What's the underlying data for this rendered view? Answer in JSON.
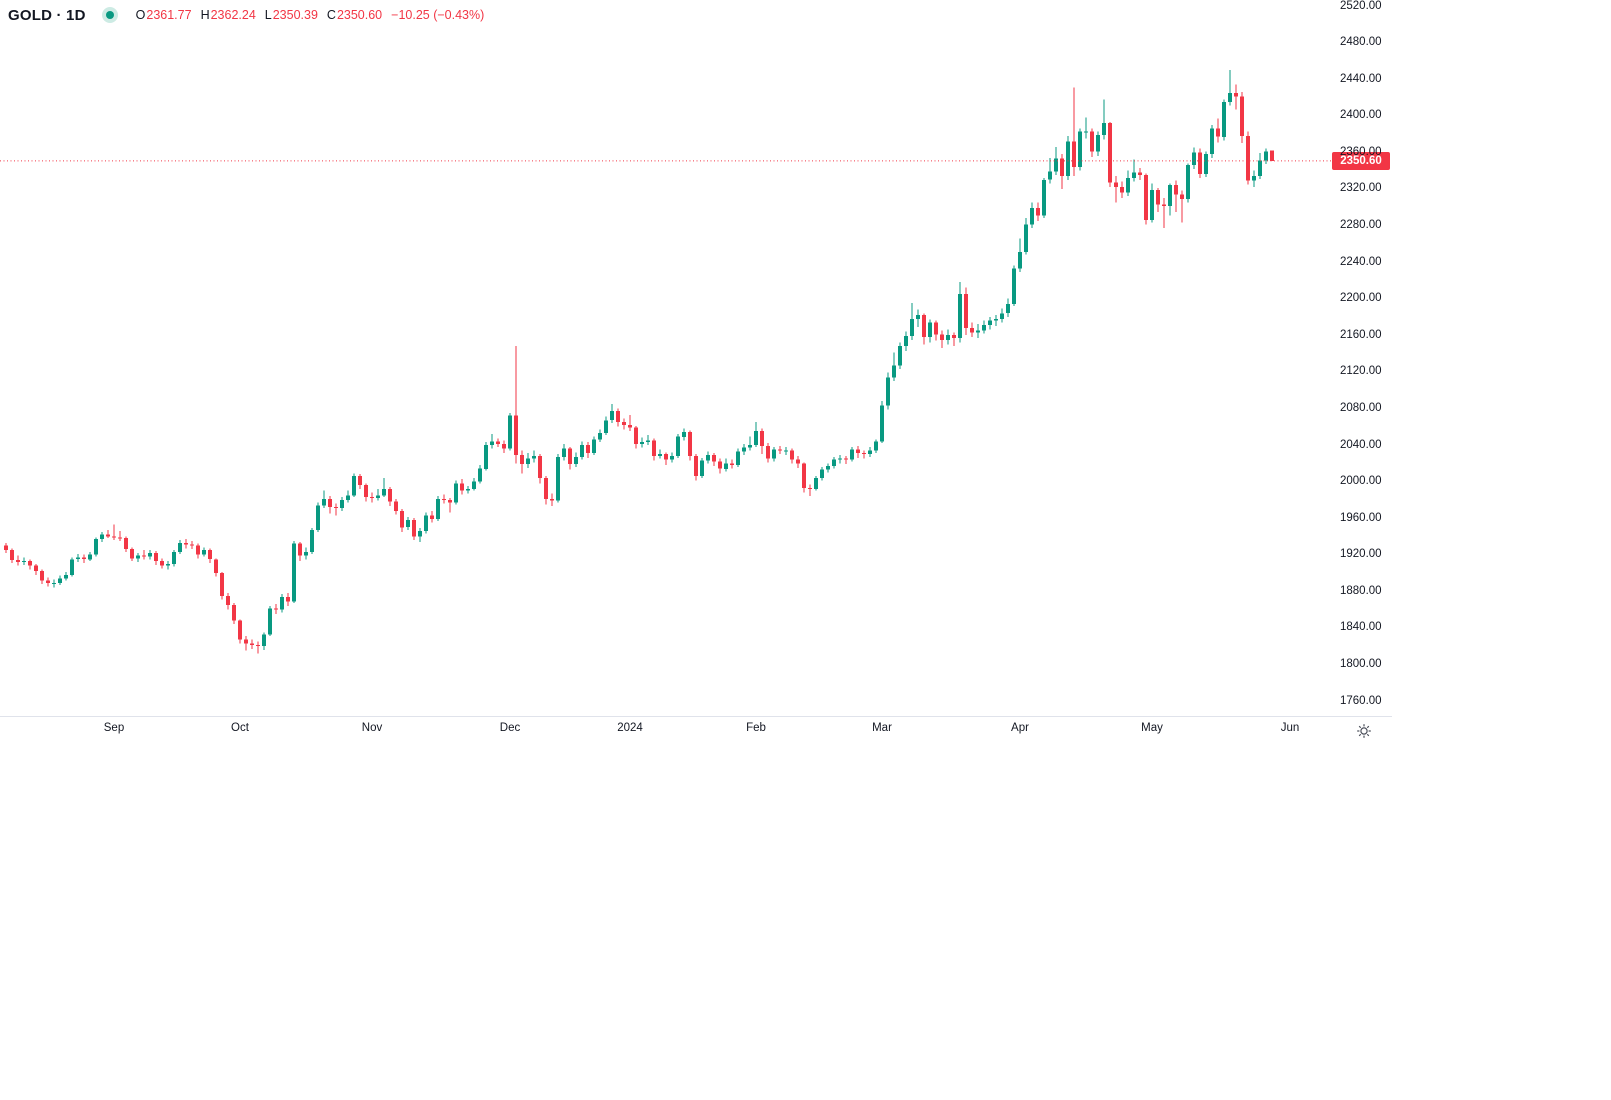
{
  "header": {
    "symbol_title": "GOLD · 1D",
    "status_dot": "market-status-green",
    "ohlc": {
      "open_label": "O",
      "open": "2361.77",
      "high_label": "H",
      "high": "2362.24",
      "low_label": "L",
      "low": "2350.39",
      "close_label": "C",
      "close": "2350.60",
      "change": "−10.25 (−0.43%)"
    }
  },
  "colors": {
    "up": "#089981",
    "down": "#f23645",
    "text": "#131722",
    "axis_text": "#131722",
    "border": "#e0e3eb",
    "last_price": "#f23645",
    "status_dot": "#089981",
    "status_dot_halo": "#cdebe4",
    "icon": "#4a4e59"
  },
  "chart_data": {
    "type": "candlestick",
    "symbol": "GOLD",
    "interval": "1D",
    "legend": "GOLD · 1D",
    "grid": "off",
    "legend_position": "top-left",
    "ylim": [
      1744,
      2527
    ],
    "price_axis_labels": [
      "2520.00",
      "2480.00",
      "2440.00",
      "2400.00",
      "2360.00",
      "2320.00",
      "2280.00",
      "2240.00",
      "2200.00",
      "2160.00",
      "2120.00",
      "2080.00",
      "2040.00",
      "2000.00",
      "1960.00",
      "1920.00",
      "1880.00",
      "1840.00",
      "1800.00",
      "1760.00"
    ],
    "price_tick_values": [
      2520,
      2480,
      2440,
      2400,
      2360,
      2320,
      2280,
      2240,
      2200,
      2160,
      2120,
      2080,
      2040,
      2000,
      1960,
      1920,
      1880,
      1840,
      1800,
      1760
    ],
    "last_price": 2350.6,
    "last_price_label": "2350.60",
    "time_axis_ticks": [
      {
        "label": "Sep",
        "index": 18
      },
      {
        "label": "Oct",
        "index": 39
      },
      {
        "label": "Nov",
        "index": 61
      },
      {
        "label": "Dec",
        "index": 84
      },
      {
        "label": "2024",
        "index": 104
      },
      {
        "label": "Feb",
        "index": 125
      },
      {
        "label": "Mar",
        "index": 146
      },
      {
        "label": "Apr",
        "index": 169
      },
      {
        "label": "May",
        "index": 191
      },
      {
        "label": "Jun",
        "index": 214
      }
    ],
    "candles_format": [
      "open",
      "high",
      "low",
      "close"
    ],
    "candles": [
      [
        1930,
        1933,
        1922,
        1925
      ],
      [
        1925,
        1927,
        1911,
        1914
      ],
      [
        1914,
        1919,
        1908,
        1912
      ],
      [
        1912,
        1917,
        1909,
        1913
      ],
      [
        1913,
        1915,
        1904,
        1908
      ],
      [
        1908,
        1910,
        1898,
        1902
      ],
      [
        1902,
        1904,
        1888,
        1892
      ],
      [
        1892,
        1895,
        1885,
        1889
      ],
      [
        1889,
        1893,
        1884,
        1889
      ],
      [
        1889,
        1897,
        1887,
        1894
      ],
      [
        1894,
        1901,
        1892,
        1898
      ],
      [
        1898,
        1917,
        1896,
        1915
      ],
      [
        1915,
        1921,
        1912,
        1917
      ],
      [
        1917,
        1920,
        1911,
        1915
      ],
      [
        1915,
        1923,
        1913,
        1920
      ],
      [
        1920,
        1939,
        1918,
        1937
      ],
      [
        1937,
        1945,
        1934,
        1942
      ],
      [
        1942,
        1947,
        1938,
        1940
      ],
      [
        1940,
        1953,
        1936,
        1939
      ],
      [
        1939,
        1946,
        1935,
        1938
      ],
      [
        1938,
        1940,
        1923,
        1926
      ],
      [
        1926,
        1928,
        1913,
        1916
      ],
      [
        1916,
        1922,
        1912,
        1919
      ],
      [
        1919,
        1925,
        1915,
        1918
      ],
      [
        1918,
        1925,
        1915,
        1922
      ],
      [
        1922,
        1924,
        1909,
        1913
      ],
      [
        1913,
        1916,
        1905,
        1908
      ],
      [
        1908,
        1913,
        1904,
        1910
      ],
      [
        1910,
        1925,
        1907,
        1923
      ],
      [
        1923,
        1936,
        1921,
        1933
      ],
      [
        1933,
        1937,
        1927,
        1931
      ],
      [
        1931,
        1935,
        1926,
        1930
      ],
      [
        1930,
        1932,
        1916,
        1920
      ],
      [
        1920,
        1928,
        1918,
        1925
      ],
      [
        1925,
        1927,
        1911,
        1915
      ],
      [
        1915,
        1916,
        1896,
        1900
      ],
      [
        1900,
        1901,
        1871,
        1875
      ],
      [
        1875,
        1878,
        1860,
        1865
      ],
      [
        1865,
        1867,
        1844,
        1848
      ],
      [
        1848,
        1849,
        1823,
        1827
      ],
      [
        1827,
        1831,
        1815,
        1823
      ],
      [
        1823,
        1827,
        1817,
        1821
      ],
      [
        1821,
        1825,
        1812,
        1820
      ],
      [
        1820,
        1835,
        1816,
        1833
      ],
      [
        1833,
        1864,
        1831,
        1861
      ],
      [
        1861,
        1866,
        1855,
        1860
      ],
      [
        1860,
        1877,
        1857,
        1874
      ],
      [
        1874,
        1878,
        1864,
        1869
      ],
      [
        1869,
        1935,
        1867,
        1932
      ],
      [
        1932,
        1934,
        1913,
        1919
      ],
      [
        1919,
        1928,
        1915,
        1923
      ],
      [
        1923,
        1949,
        1921,
        1947
      ],
      [
        1947,
        1977,
        1945,
        1974
      ],
      [
        1974,
        1990,
        1971,
        1981
      ],
      [
        1981,
        1984,
        1965,
        1972
      ],
      [
        1972,
        1976,
        1963,
        1971
      ],
      [
        1971,
        1983,
        1968,
        1980
      ],
      [
        1980,
        1990,
        1977,
        1985
      ],
      [
        1985,
        2009,
        1983,
        2006
      ],
      [
        2006,
        2008,
        1992,
        1996
      ],
      [
        1996,
        1998,
        1978,
        1983
      ],
      [
        1983,
        1988,
        1977,
        1982
      ],
      [
        1982,
        1992,
        1979,
        1985
      ],
      [
        1985,
        2004,
        1983,
        1992
      ],
      [
        1992,
        1994,
        1973,
        1978
      ],
      [
        1978,
        1981,
        1964,
        1968
      ],
      [
        1968,
        1970,
        1945,
        1950
      ],
      [
        1950,
        1961,
        1947,
        1958
      ],
      [
        1958,
        1960,
        1936,
        1940
      ],
      [
        1940,
        1949,
        1934,
        1946
      ],
      [
        1946,
        1966,
        1943,
        1963
      ],
      [
        1963,
        1968,
        1955,
        1959
      ],
      [
        1959,
        1984,
        1957,
        1981
      ],
      [
        1981,
        1986,
        1976,
        1980
      ],
      [
        1980,
        1982,
        1966,
        1977
      ],
      [
        1977,
        2001,
        1975,
        1998
      ],
      [
        1998,
        2003,
        1986,
        1990
      ],
      [
        1990,
        1995,
        1987,
        1992
      ],
      [
        1992,
        2004,
        1990,
        2000
      ],
      [
        2000,
        2018,
        1998,
        2014
      ],
      [
        2014,
        2043,
        2012,
        2040
      ],
      [
        2040,
        2052,
        2036,
        2044
      ],
      [
        2044,
        2047,
        2038,
        2041
      ],
      [
        2041,
        2045,
        2031,
        2036
      ],
      [
        2036,
        2075,
        2034,
        2072
      ],
      [
        2072,
        2148,
        2020,
        2029
      ],
      [
        2029,
        2034,
        2009,
        2019
      ],
      [
        2019,
        2031,
        2015,
        2025
      ],
      [
        2025,
        2034,
        2021,
        2028
      ],
      [
        2028,
        2030,
        1998,
        2004
      ],
      [
        2004,
        2006,
        1975,
        1981
      ],
      [
        1981,
        1987,
        1973,
        1979
      ],
      [
        1979,
        2030,
        1977,
        2027
      ],
      [
        2027,
        2041,
        2023,
        2036
      ],
      [
        2036,
        2038,
        2013,
        2019
      ],
      [
        2019,
        2032,
        2016,
        2027
      ],
      [
        2027,
        2044,
        2024,
        2040
      ],
      [
        2040,
        2043,
        2026,
        2031
      ],
      [
        2031,
        2049,
        2029,
        2046
      ],
      [
        2046,
        2057,
        2043,
        2053
      ],
      [
        2053,
        2071,
        2051,
        2067
      ],
      [
        2067,
        2085,
        2064,
        2077
      ],
      [
        2077,
        2080,
        2060,
        2065
      ],
      [
        2065,
        2069,
        2057,
        2062
      ],
      [
        2062,
        2073,
        2055,
        2059
      ],
      [
        2059,
        2061,
        2036,
        2041
      ],
      [
        2041,
        2048,
        2037,
        2043
      ],
      [
        2043,
        2051,
        2040,
        2045
      ],
      [
        2045,
        2047,
        2023,
        2028
      ],
      [
        2028,
        2035,
        2025,
        2030
      ],
      [
        2030,
        2032,
        2018,
        2024
      ],
      [
        2024,
        2032,
        2021,
        2028
      ],
      [
        2028,
        2052,
        2026,
        2049
      ],
      [
        2049,
        2058,
        2045,
        2054
      ],
      [
        2054,
        2056,
        2023,
        2028
      ],
      [
        2028,
        2030,
        2001,
        2006
      ],
      [
        2006,
        2026,
        2004,
        2023
      ],
      [
        2023,
        2033,
        2020,
        2029
      ],
      [
        2029,
        2031,
        2017,
        2022
      ],
      [
        2022,
        2025,
        2009,
        2014
      ],
      [
        2014,
        2025,
        2011,
        2020
      ],
      [
        2020,
        2024,
        2014,
        2018
      ],
      [
        2018,
        2036,
        2016,
        2033
      ],
      [
        2033,
        2041,
        2029,
        2037
      ],
      [
        2037,
        2049,
        2034,
        2040
      ],
      [
        2040,
        2065,
        2038,
        2055
      ],
      [
        2055,
        2058,
        2030,
        2039
      ],
      [
        2039,
        2042,
        2021,
        2025
      ],
      [
        2025,
        2038,
        2022,
        2035
      ],
      [
        2035,
        2039,
        2030,
        2034
      ],
      [
        2034,
        2038,
        2029,
        2034
      ],
      [
        2034,
        2036,
        2020,
        2024
      ],
      [
        2024,
        2028,
        2015,
        2020
      ],
      [
        2020,
        2021,
        1988,
        1993
      ],
      [
        1993,
        1997,
        1984,
        1992
      ],
      [
        1992,
        2006,
        1990,
        2004
      ],
      [
        2004,
        2016,
        2001,
        2013
      ],
      [
        2013,
        2020,
        2010,
        2017
      ],
      [
        2017,
        2027,
        2014,
        2024
      ],
      [
        2024,
        2029,
        2020,
        2025
      ],
      [
        2025,
        2028,
        2019,
        2024
      ],
      [
        2024,
        2038,
        2022,
        2035
      ],
      [
        2035,
        2039,
        2026,
        2031
      ],
      [
        2031,
        2034,
        2025,
        2030
      ],
      [
        2030,
        2038,
        2027,
        2034
      ],
      [
        2034,
        2046,
        2031,
        2044
      ],
      [
        2044,
        2088,
        2042,
        2083
      ],
      [
        2083,
        2119,
        2079,
        2114
      ],
      [
        2114,
        2141,
        2110,
        2127
      ],
      [
        2127,
        2152,
        2123,
        2148
      ],
      [
        2148,
        2164,
        2143,
        2159
      ],
      [
        2159,
        2195,
        2155,
        2178
      ],
      [
        2178,
        2188,
        2169,
        2182
      ],
      [
        2182,
        2184,
        2150,
        2158
      ],
      [
        2158,
        2177,
        2152,
        2174
      ],
      [
        2174,
        2176,
        2154,
        2161
      ],
      [
        2161,
        2165,
        2146,
        2155
      ],
      [
        2155,
        2166,
        2150,
        2160
      ],
      [
        2160,
        2163,
        2148,
        2157
      ],
      [
        2157,
        2218,
        2152,
        2205
      ],
      [
        2205,
        2212,
        2160,
        2168
      ],
      [
        2168,
        2174,
        2158,
        2163
      ],
      [
        2163,
        2172,
        2157,
        2165
      ],
      [
        2165,
        2176,
        2162,
        2171
      ],
      [
        2171,
        2180,
        2166,
        2176
      ],
      [
        2176,
        2182,
        2170,
        2178
      ],
      [
        2178,
        2189,
        2174,
        2184
      ],
      [
        2184,
        2200,
        2180,
        2194
      ],
      [
        2194,
        2236,
        2192,
        2233
      ],
      [
        2233,
        2266,
        2229,
        2251
      ],
      [
        2251,
        2288,
        2248,
        2281
      ],
      [
        2281,
        2305,
        2277,
        2299
      ],
      [
        2299,
        2305,
        2285,
        2291
      ],
      [
        2291,
        2332,
        2288,
        2330
      ],
      [
        2330,
        2354,
        2326,
        2339
      ],
      [
        2339,
        2366,
        2335,
        2353
      ],
      [
        2353,
        2358,
        2320,
        2334
      ],
      [
        2334,
        2378,
        2330,
        2372
      ],
      [
        2372,
        2431,
        2334,
        2344
      ],
      [
        2344,
        2386,
        2340,
        2383
      ],
      [
        2383,
        2398,
        2375,
        2383
      ],
      [
        2383,
        2386,
        2355,
        2361
      ],
      [
        2361,
        2383,
        2356,
        2379
      ],
      [
        2379,
        2418,
        2374,
        2392
      ],
      [
        2392,
        2393,
        2322,
        2327
      ],
      [
        2327,
        2334,
        2305,
        2322
      ],
      [
        2322,
        2328,
        2310,
        2316
      ],
      [
        2316,
        2340,
        2312,
        2332
      ],
      [
        2332,
        2352,
        2328,
        2338
      ],
      [
        2338,
        2343,
        2330,
        2335
      ],
      [
        2335,
        2337,
        2281,
        2286
      ],
      [
        2286,
        2326,
        2283,
        2319
      ],
      [
        2319,
        2321,
        2295,
        2303
      ],
      [
        2303,
        2310,
        2277,
        2301
      ],
      [
        2301,
        2326,
        2291,
        2324
      ],
      [
        2324,
        2329,
        2295,
        2314
      ],
      [
        2314,
        2318,
        2283,
        2309
      ],
      [
        2309,
        2348,
        2305,
        2346
      ],
      [
        2346,
        2365,
        2342,
        2360
      ],
      [
        2360,
        2364,
        2332,
        2336
      ],
      [
        2336,
        2361,
        2333,
        2358
      ],
      [
        2358,
        2390,
        2354,
        2386
      ],
      [
        2386,
        2397,
        2371,
        2377
      ],
      [
        2377,
        2418,
        2373,
        2415
      ],
      [
        2415,
        2450,
        2411,
        2425
      ],
      [
        2425,
        2434,
        2407,
        2421
      ],
      [
        2421,
        2426,
        2370,
        2378
      ],
      [
        2378,
        2383,
        2325,
        2329
      ],
      [
        2329,
        2340,
        2322,
        2334
      ],
      [
        2334,
        2359,
        2331,
        2351
      ],
      [
        2351,
        2364,
        2347,
        2361
      ],
      [
        2361.77,
        2362.24,
        2350.39,
        2350.6
      ]
    ]
  }
}
